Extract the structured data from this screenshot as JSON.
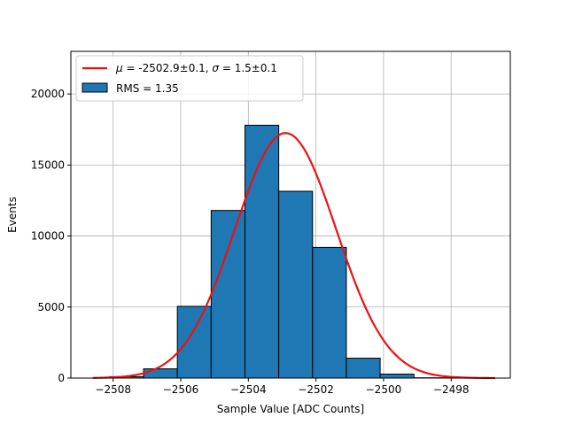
{
  "chart_data": {
    "type": "bar",
    "xlabel": "Sample Value [ADC Counts]",
    "ylabel": "Events",
    "xlim": [
      -2509.25,
      -2496.25
    ],
    "ylim": [
      0,
      23000
    ],
    "grid": true,
    "legend_position": "upper-left",
    "xticks": [
      -2508,
      -2506,
      -2504,
      -2502,
      -2500,
      -2498
    ],
    "xtick_labels": [
      "−2508",
      "−2506",
      "−2504",
      "−2502",
      "−2500",
      "−2498"
    ],
    "yticks": [
      0,
      5000,
      10000,
      15000,
      20000
    ],
    "ytick_labels": [
      "0",
      "5000",
      "10000",
      "15000",
      "20000"
    ],
    "histogram": {
      "bin_edges": [
        -2508.1,
        -2507.1,
        -2506.1,
        -2505.1,
        -2504.1,
        -2503.1,
        -2502.1,
        -2501.1,
        -2500.1,
        -2499.1,
        -2498.1
      ],
      "values": [
        100,
        650,
        5050,
        11800,
        17800,
        13150,
        9200,
        1400,
        280,
        20
      ],
      "legend_label": "RMS = 1.35",
      "color": "#1f77b4",
      "edgecolor": "#000000"
    },
    "fit": {
      "type": "gaussian",
      "mu": -2502.9,
      "sigma": 1.5,
      "amplitude": 17250,
      "x_range": [
        -2508.6,
        -2496.7
      ],
      "color": "#ee1111",
      "legend_label_parts": [
        "μ",
        " = -2502.9±0.1, ",
        "σ",
        " = 1.5±0.1"
      ]
    }
  }
}
